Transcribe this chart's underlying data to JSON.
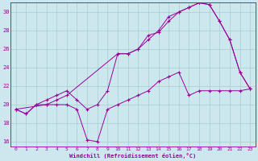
{
  "xlabel": "Windchill (Refroidissement éolien,°C)",
  "bg_color": "#cce8ee",
  "line_color": "#990099",
  "grid_color": "#aacccc",
  "xlim": [
    -0.5,
    23.5
  ],
  "ylim": [
    15.5,
    31.0
  ],
  "yticks": [
    16,
    18,
    20,
    22,
    24,
    26,
    28,
    30
  ],
  "xticks": [
    0,
    1,
    2,
    3,
    4,
    5,
    6,
    7,
    8,
    9,
    10,
    11,
    12,
    13,
    14,
    15,
    16,
    17,
    18,
    19,
    20,
    21,
    22,
    23
  ],
  "line1_x": [
    0,
    1,
    2,
    3,
    4,
    5,
    6,
    7,
    8,
    9,
    10,
    11,
    12,
    13,
    14,
    15,
    16,
    17,
    18,
    19,
    20,
    21,
    22,
    23
  ],
  "line1_y": [
    19.5,
    19.0,
    20.0,
    20.0,
    20.0,
    20.0,
    19.5,
    16.2,
    16.0,
    19.5,
    20.0,
    20.5,
    21.0,
    21.5,
    22.5,
    23.0,
    23.5,
    21.0,
    21.5,
    21.5,
    21.5,
    21.5,
    21.5,
    21.7
  ],
  "line2_x": [
    0,
    1,
    2,
    3,
    4,
    5,
    6,
    7,
    8,
    9,
    10,
    11,
    12,
    13,
    14,
    15,
    16,
    17,
    18,
    19,
    20,
    21,
    22,
    23
  ],
  "line2_y": [
    19.5,
    19.0,
    20.0,
    20.5,
    21.0,
    21.5,
    20.5,
    19.5,
    20.0,
    21.5,
    25.5,
    25.5,
    26.0,
    27.5,
    27.8,
    29.0,
    30.0,
    30.5,
    31.0,
    30.8,
    29.0,
    27.0,
    23.5,
    21.7
  ],
  "line3_x": [
    0,
    3,
    4,
    5,
    10,
    11,
    12,
    13,
    14,
    15,
    16,
    17,
    18,
    19,
    20,
    21,
    22,
    23
  ],
  "line3_y": [
    19.5,
    20.0,
    20.5,
    21.0,
    25.5,
    25.5,
    26.0,
    27.0,
    28.0,
    29.5,
    30.0,
    30.5,
    31.0,
    30.8,
    29.0,
    27.0,
    23.5,
    21.7
  ]
}
